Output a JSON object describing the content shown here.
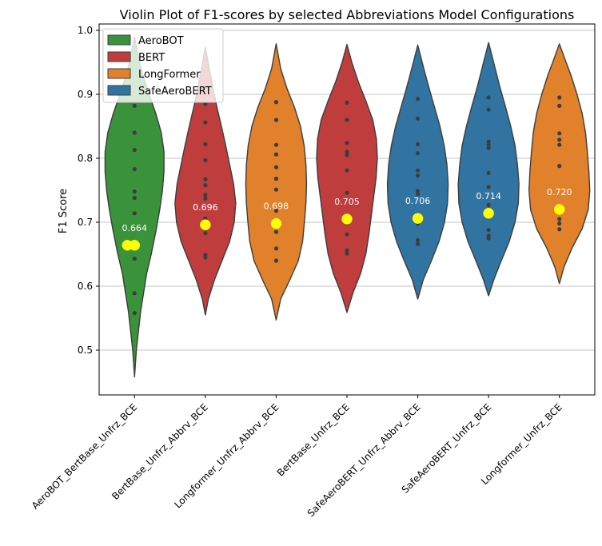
{
  "chart_data": {
    "type": "violin",
    "title": "Violin Plot of F1-scores by selected Abbreviations Model Configurations",
    "xlabel": "",
    "ylabel": "F1 Score",
    "ylim": [
      0.43,
      1.01
    ],
    "yticks": [
      0.5,
      0.6,
      0.7,
      0.8,
      0.9,
      1.0
    ],
    "ytick_labels": [
      "0.5",
      "0.6",
      "0.7",
      "0.8",
      "0.9",
      "1.0"
    ],
    "grid": "horizontal",
    "legend_position": "top-left",
    "legend": [
      {
        "label": "AeroBOT",
        "color": "#3a923a"
      },
      {
        "label": "BERT",
        "color": "#c03d3e"
      },
      {
        "label": "LongFormer",
        "color": "#e1812c"
      },
      {
        "label": "SafeAeroBERT",
        "color": "#3274a1"
      }
    ],
    "categories": [
      {
        "name": "AeroBOT_BertBase_Unfrz_BCE",
        "color": "#3a923a",
        "mean": 0.664,
        "mean_label": "0.664",
        "range": [
          0.458,
          0.99
        ],
        "shape": [
          [
            0.458,
            0
          ],
          [
            0.5,
            0.06
          ],
          [
            0.56,
            0.2
          ],
          [
            0.62,
            0.4
          ],
          [
            0.65,
            0.55
          ],
          [
            0.69,
            0.72
          ],
          [
            0.72,
            0.83
          ],
          [
            0.75,
            0.92
          ],
          [
            0.78,
            0.97
          ],
          [
            0.81,
            0.97
          ],
          [
            0.84,
            0.88
          ],
          [
            0.87,
            0.7
          ],
          [
            0.9,
            0.48
          ],
          [
            0.93,
            0.27
          ],
          [
            0.96,
            0.12
          ],
          [
            0.99,
            0
          ]
        ],
        "points": [
          0.558,
          0.589,
          0.643,
          0.662,
          0.714,
          0.738,
          0.748,
          0.783,
          0.813,
          0.84,
          0.882
        ]
      },
      {
        "name": "BertBase_Unfrz_Abbrv_BCE",
        "color": "#c03d3e",
        "mean": 0.696,
        "mean_label": "0.696",
        "range": [
          0.555,
          0.974
        ],
        "shape": [
          [
            0.555,
            0
          ],
          [
            0.58,
            0.1
          ],
          [
            0.61,
            0.3
          ],
          [
            0.64,
            0.55
          ],
          [
            0.67,
            0.8
          ],
          [
            0.7,
            0.95
          ],
          [
            0.73,
            1.0
          ],
          [
            0.76,
            0.93
          ],
          [
            0.79,
            0.8
          ],
          [
            0.82,
            0.67
          ],
          [
            0.85,
            0.53
          ],
          [
            0.88,
            0.38
          ],
          [
            0.91,
            0.25
          ],
          [
            0.94,
            0.13
          ],
          [
            0.974,
            0
          ]
        ],
        "points": [
          0.645,
          0.649,
          0.683,
          0.694,
          0.706,
          0.737,
          0.743,
          0.758,
          0.767,
          0.797,
          0.822,
          0.856,
          0.885,
          0.911
        ]
      },
      {
        "name": "Longformer_Unfrz_Abbrv_BCE",
        "color": "#e1812c",
        "mean": 0.698,
        "mean_label": "0.698",
        "range": [
          0.547,
          0.979
        ],
        "shape": [
          [
            0.547,
            0
          ],
          [
            0.58,
            0.15
          ],
          [
            0.61,
            0.45
          ],
          [
            0.64,
            0.73
          ],
          [
            0.67,
            0.87
          ],
          [
            0.7,
            0.93
          ],
          [
            0.73,
            0.98
          ],
          [
            0.76,
            1.0
          ],
          [
            0.79,
            0.98
          ],
          [
            0.82,
            0.92
          ],
          [
            0.85,
            0.8
          ],
          [
            0.88,
            0.6
          ],
          [
            0.91,
            0.35
          ],
          [
            0.94,
            0.15
          ],
          [
            0.979,
            0
          ]
        ],
        "points": [
          0.64,
          0.659,
          0.685,
          0.701,
          0.718,
          0.751,
          0.768,
          0.786,
          0.806,
          0.821,
          0.86,
          0.888
        ]
      },
      {
        "name": "BertBase_Unfrz_BCE",
        "color": "#c03d3e",
        "mean": 0.705,
        "mean_label": "0.705",
        "range": [
          0.559,
          0.978
        ],
        "shape": [
          [
            0.559,
            0
          ],
          [
            0.59,
            0.2
          ],
          [
            0.62,
            0.45
          ],
          [
            0.65,
            0.62
          ],
          [
            0.68,
            0.72
          ],
          [
            0.71,
            0.8
          ],
          [
            0.74,
            0.88
          ],
          [
            0.77,
            0.96
          ],
          [
            0.8,
            1.0
          ],
          [
            0.83,
            0.97
          ],
          [
            0.86,
            0.85
          ],
          [
            0.89,
            0.62
          ],
          [
            0.92,
            0.37
          ],
          [
            0.95,
            0.16
          ],
          [
            0.978,
            0
          ]
        ],
        "points": [
          0.651,
          0.656,
          0.681,
          0.699,
          0.746,
          0.781,
          0.805,
          0.81,
          0.824,
          0.86,
          0.887
        ]
      },
      {
        "name": "SafeAeroBERT_Unfrz_Abbrv_BCE",
        "color": "#3274a1",
        "mean": 0.706,
        "mean_label": "0.706",
        "range": [
          0.58,
          0.977
        ],
        "shape": [
          [
            0.58,
            0
          ],
          [
            0.61,
            0.18
          ],
          [
            0.64,
            0.45
          ],
          [
            0.67,
            0.7
          ],
          [
            0.7,
            0.88
          ],
          [
            0.73,
            0.98
          ],
          [
            0.76,
            1.0
          ],
          [
            0.79,
            0.96
          ],
          [
            0.82,
            0.87
          ],
          [
            0.85,
            0.73
          ],
          [
            0.88,
            0.55
          ],
          [
            0.91,
            0.37
          ],
          [
            0.94,
            0.2
          ],
          [
            0.977,
            0
          ]
        ],
        "points": [
          0.666,
          0.672,
          0.698,
          0.744,
          0.749,
          0.773,
          0.781,
          0.808,
          0.822,
          0.862,
          0.893
        ]
      },
      {
        "name": "SafeAeroBERT_Unfrz_BCE",
        "color": "#3274a1",
        "mean": 0.714,
        "mean_label": "0.714",
        "range": [
          0.585,
          0.981
        ],
        "shape": [
          [
            0.585,
            0
          ],
          [
            0.61,
            0.17
          ],
          [
            0.64,
            0.42
          ],
          [
            0.67,
            0.68
          ],
          [
            0.7,
            0.87
          ],
          [
            0.73,
            0.98
          ],
          [
            0.76,
            1.0
          ],
          [
            0.79,
            0.95
          ],
          [
            0.82,
            0.87
          ],
          [
            0.85,
            0.73
          ],
          [
            0.88,
            0.56
          ],
          [
            0.91,
            0.38
          ],
          [
            0.94,
            0.22
          ],
          [
            0.981,
            0
          ]
        ],
        "points": [
          0.675,
          0.679,
          0.688,
          0.712,
          0.727,
          0.755,
          0.777,
          0.816,
          0.821,
          0.826,
          0.876,
          0.895
        ]
      },
      {
        "name": "Longformer_Unfrz_BCE",
        "color": "#e1812c",
        "mean": 0.72,
        "mean_label": "0.720",
        "range": [
          0.604,
          0.979
        ],
        "shape": [
          [
            0.604,
            0
          ],
          [
            0.63,
            0.15
          ],
          [
            0.66,
            0.42
          ],
          [
            0.69,
            0.75
          ],
          [
            0.72,
            0.95
          ],
          [
            0.75,
            1.0
          ],
          [
            0.78,
            0.97
          ],
          [
            0.81,
            0.92
          ],
          [
            0.84,
            0.86
          ],
          [
            0.87,
            0.75
          ],
          [
            0.9,
            0.58
          ],
          [
            0.93,
            0.38
          ],
          [
            0.95,
            0.22
          ],
          [
            0.979,
            0
          ]
        ],
        "points": [
          0.689,
          0.698,
          0.705,
          0.716,
          0.788,
          0.821,
          0.829,
          0.839,
          0.882,
          0.895
        ]
      }
    ]
  }
}
